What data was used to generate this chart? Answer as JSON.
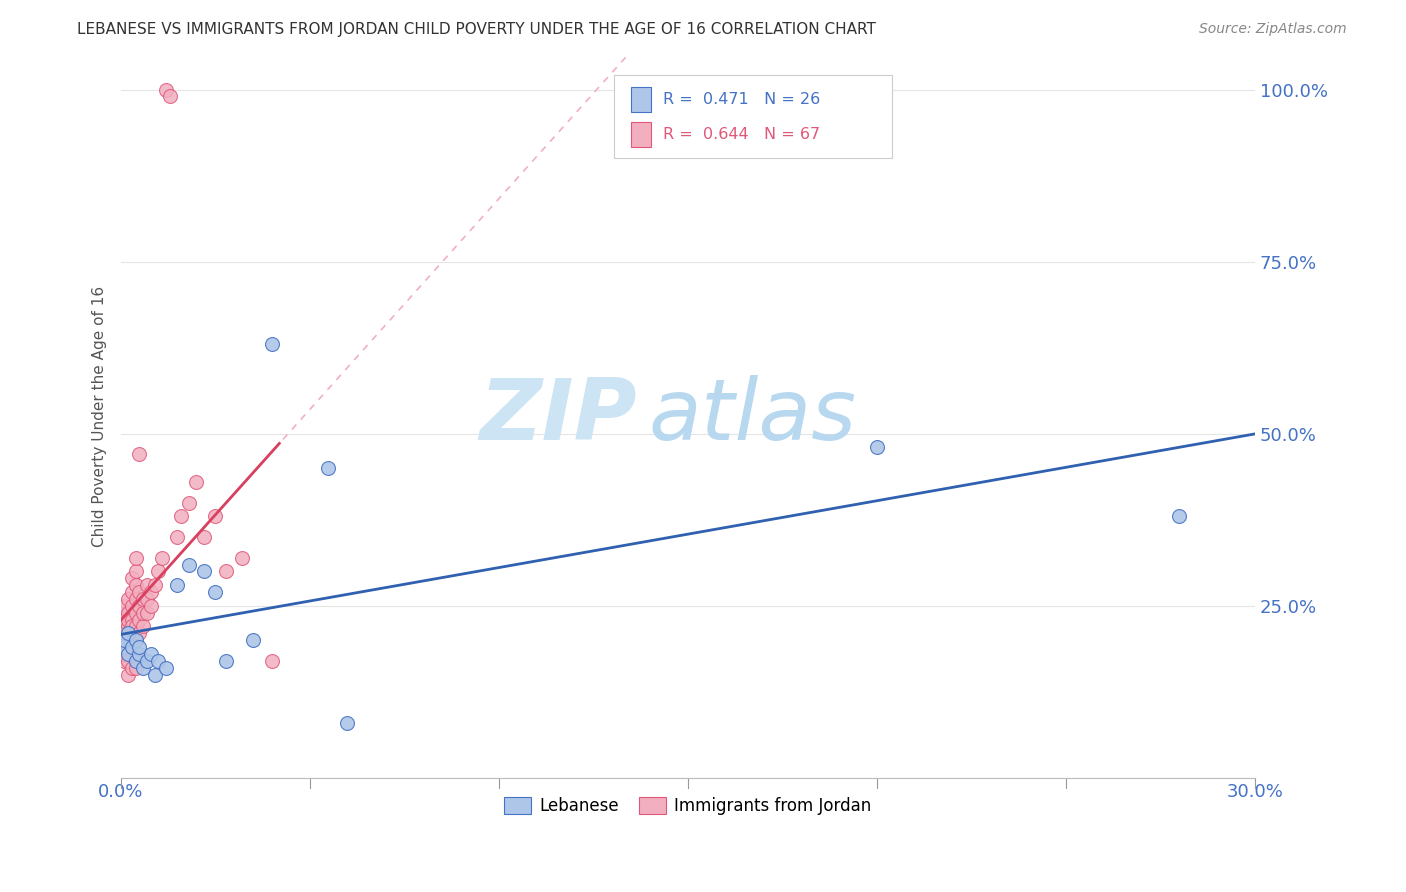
{
  "title": "LEBANESE VS IMMIGRANTS FROM JORDAN CHILD POVERTY UNDER THE AGE OF 16 CORRELATION CHART",
  "source": "Source: ZipAtlas.com",
  "ylabel": "Child Poverty Under the Age of 16",
  "xlim": [
    0.0,
    0.3
  ],
  "ylim": [
    0.0,
    1.05
  ],
  "R_lebanese": 0.471,
  "N_lebanese": 26,
  "R_jordan": 0.644,
  "N_jordan": 67,
  "lebanese_color": "#aec6e8",
  "lebanese_edge": "#4472c4",
  "jordan_color": "#f2afc0",
  "jordan_edge": "#e05878",
  "lebanese_line_color": "#3060b0",
  "jordan_line_color": "#d84060",
  "dashed_line_color": "#f0b0be",
  "background_color": "#ffffff",
  "watermark_zip_color": "#cce4f4",
  "watermark_atlas_color": "#b8d8f0",
  "grid_color": "#e5e5e5",
  "tick_color": "#4472c4",
  "title_color": "#333333",
  "source_color": "#888888",
  "legend_lebanese": "Lebanese",
  "legend_jordan": "Immigrants from Jordan",
  "leb_x": [
    0.001,
    0.001,
    0.002,
    0.002,
    0.003,
    0.004,
    0.004,
    0.005,
    0.005,
    0.006,
    0.007,
    0.008,
    0.009,
    0.01,
    0.012,
    0.015,
    0.018,
    0.022,
    0.025,
    0.028,
    0.035,
    0.04,
    0.055,
    0.06,
    0.2,
    0.28
  ],
  "leb_y": [
    0.19,
    0.2,
    0.18,
    0.21,
    0.19,
    0.17,
    0.2,
    0.18,
    0.19,
    0.16,
    0.17,
    0.18,
    0.15,
    0.17,
    0.16,
    0.28,
    0.31,
    0.3,
    0.27,
    0.17,
    0.2,
    0.63,
    0.45,
    0.08,
    0.48,
    0.38
  ],
  "jord_x": [
    0.001,
    0.001,
    0.001,
    0.001,
    0.001,
    0.001,
    0.001,
    0.001,
    0.001,
    0.001,
    0.002,
    0.002,
    0.002,
    0.002,
    0.002,
    0.002,
    0.002,
    0.002,
    0.002,
    0.002,
    0.003,
    0.003,
    0.003,
    0.003,
    0.003,
    0.003,
    0.003,
    0.003,
    0.003,
    0.003,
    0.004,
    0.004,
    0.004,
    0.004,
    0.004,
    0.004,
    0.004,
    0.004,
    0.004,
    0.004,
    0.005,
    0.005,
    0.005,
    0.005,
    0.005,
    0.006,
    0.006,
    0.006,
    0.007,
    0.007,
    0.007,
    0.008,
    0.008,
    0.009,
    0.01,
    0.011,
    0.012,
    0.013,
    0.015,
    0.016,
    0.018,
    0.02,
    0.022,
    0.025,
    0.028,
    0.032,
    0.04
  ],
  "jord_y": [
    0.17,
    0.18,
    0.19,
    0.2,
    0.21,
    0.22,
    0.23,
    0.24,
    0.25,
    0.19,
    0.18,
    0.2,
    0.22,
    0.24,
    0.26,
    0.17,
    0.19,
    0.21,
    0.23,
    0.15,
    0.19,
    0.21,
    0.23,
    0.25,
    0.27,
    0.29,
    0.18,
    0.2,
    0.22,
    0.16,
    0.2,
    0.22,
    0.24,
    0.26,
    0.28,
    0.3,
    0.32,
    0.18,
    0.17,
    0.16,
    0.21,
    0.23,
    0.25,
    0.27,
    0.47,
    0.22,
    0.24,
    0.26,
    0.24,
    0.26,
    0.28,
    0.25,
    0.27,
    0.28,
    0.3,
    0.32,
    1.0,
    0.99,
    0.35,
    0.38,
    0.4,
    0.43,
    0.35,
    0.38,
    0.3,
    0.32,
    0.17
  ]
}
